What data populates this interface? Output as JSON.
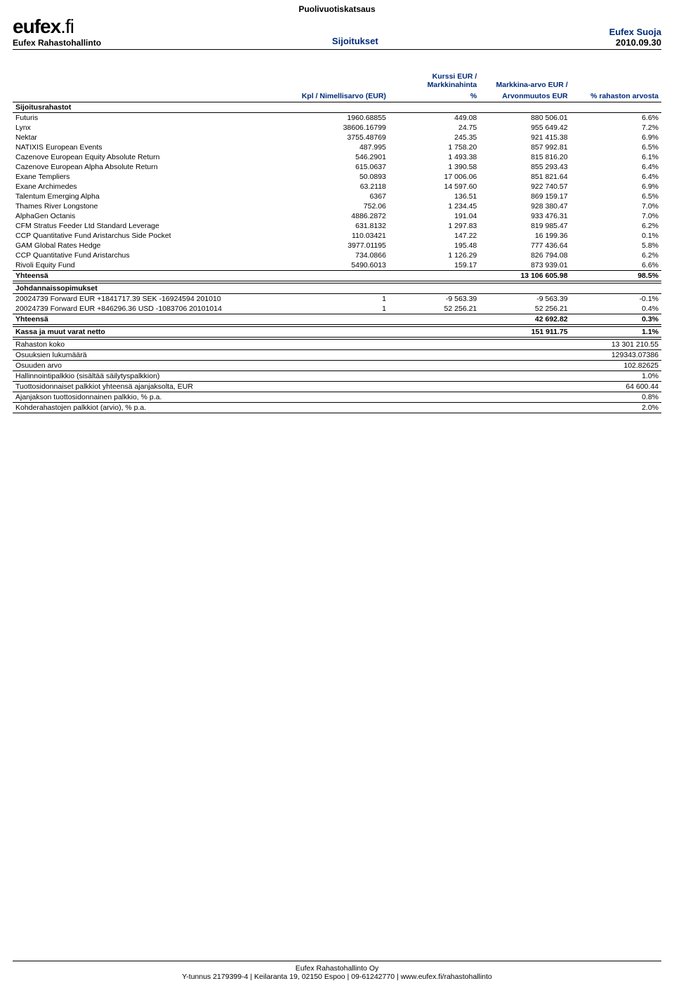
{
  "top_title": "Puolivuotiskatsaus",
  "logo": {
    "main": "eufex",
    "suffix": ".fi",
    "sub": "Eufex Rahastohallinto"
  },
  "header_center": "Sijoitukset",
  "header_right": {
    "name": "Eufex Suoja",
    "date": "2010.09.30"
  },
  "columns": {
    "name": "",
    "kpl1": "Kpl / Nimellisarvo (EUR)",
    "kurssi1": "Kurssi EUR / Markkinahinta",
    "kurssi2": "%",
    "mark1": "Markkina-arvo EUR /",
    "mark2": "Arvonmuutos EUR",
    "pct": "% rahaston arvosta"
  },
  "section1_title": "Sijoitusrahastot",
  "rows": [
    {
      "name": "Futuris",
      "kpl": "1960.68855",
      "kurssi": "449.08",
      "mark": "880 506.01",
      "pct": "6.6%"
    },
    {
      "name": "Lynx",
      "kpl": "38606.16799",
      "kurssi": "24.75",
      "mark": "955 649.42",
      "pct": "7.2%"
    },
    {
      "name": "Nektar",
      "kpl": "3755.48769",
      "kurssi": "245.35",
      "mark": "921 415.38",
      "pct": "6.9%"
    },
    {
      "name": "NATIXIS European Events",
      "kpl": "487.995",
      "kurssi": "1 758.20",
      "mark": "857 992.81",
      "pct": "6.5%"
    },
    {
      "name": "Cazenove European Equity Absolute Return",
      "kpl": "546.2901",
      "kurssi": "1 493.38",
      "mark": "815 816.20",
      "pct": "6.1%"
    },
    {
      "name": "Cazenove European Alpha Absolute Return",
      "kpl": "615.0637",
      "kurssi": "1 390.58",
      "mark": "855 293.43",
      "pct": "6.4%"
    },
    {
      "name": "Exane Templiers",
      "kpl": "50.0893",
      "kurssi": "17 006.06",
      "mark": "851 821.64",
      "pct": "6.4%"
    },
    {
      "name": "Exane Archimedes",
      "kpl": "63.2118",
      "kurssi": "14 597.60",
      "mark": "922 740.57",
      "pct": "6.9%"
    },
    {
      "name": "Talentum Emerging Alpha",
      "kpl": "6367",
      "kurssi": "136.51",
      "mark": "869 159.17",
      "pct": "6.5%"
    },
    {
      "name": "Thames River Longstone",
      "kpl": "752.06",
      "kurssi": "1 234.45",
      "mark": "928 380.47",
      "pct": "7.0%"
    },
    {
      "name": "AlphaGen Octanis",
      "kpl": "4886.2872",
      "kurssi": "191.04",
      "mark": "933 476.31",
      "pct": "7.0%"
    },
    {
      "name": "CFM Stratus Feeder Ltd Standard Leverage",
      "kpl": "631.8132",
      "kurssi": "1 297.83",
      "mark": "819 985.47",
      "pct": "6.2%"
    },
    {
      "name": "CCP Quantitative Fund Aristarchus Side Pocket",
      "kpl": "110.03421",
      "kurssi": "147.22",
      "mark": "16 199.36",
      "pct": "0.1%"
    },
    {
      "name": "GAM Global Rates Hedge",
      "kpl": "3977.01195",
      "kurssi": "195.48",
      "mark": "777 436.64",
      "pct": "5.8%"
    },
    {
      "name": "CCP Quantitative Fund Aristarchus",
      "kpl": "734.0866",
      "kurssi": "1 126.29",
      "mark": "826 794.08",
      "pct": "6.2%"
    },
    {
      "name": "Rivoli Equity Fund",
      "kpl": "5490.6013",
      "kurssi": "159.17",
      "mark": "873 939.01",
      "pct": "6.6%"
    }
  ],
  "total1": {
    "label": "Yhteensä",
    "mark": "13 106 605.98",
    "pct": "98.5%"
  },
  "section2_title": "Johdannaissopimukset",
  "rows2": [
    {
      "name": "20024739 Forward EUR +1841717.39 SEK -16924594 201010",
      "kpl": "1",
      "kurssi": "-9 563.39",
      "mark": "-9 563.39",
      "pct": "-0.1%"
    },
    {
      "name": "20024739 Forward EUR +846296.36 USD -1083706 20101014",
      "kpl": "1",
      "kurssi": "52 256.21",
      "mark": "52 256.21",
      "pct": "0.4%"
    }
  ],
  "total2": {
    "label": "Yhteensä",
    "mark": "42 692.82",
    "pct": "0.3%"
  },
  "kassa": {
    "label": "Kassa ja muut varat netto",
    "mark": "151 911.75",
    "pct": "1.1%"
  },
  "kvrows": [
    {
      "label": "Rahaston koko",
      "val": "13 301 210.55"
    },
    {
      "label": "Osuuksien lukumäärä",
      "val": "129343.07386"
    },
    {
      "label": "Osuuden arvo",
      "val": "102.82625"
    },
    {
      "label": "Hallinnointipalkkio (sisältää säilytyspalkkion)",
      "val": "1.0%"
    },
    {
      "label": "Tuottosidonnaiset palkkiot yhteensä ajanjaksolta, EUR",
      "val": "64 600.44"
    },
    {
      "label": "Ajanjakson tuottosidonnainen palkkio, % p.a.",
      "val": "0.8%"
    },
    {
      "label": "Kohderahastojen palkkiot (arvio), % p.a.",
      "val": "2.0%"
    }
  ],
  "footer": {
    "line1": "Eufex Rahastohallinto Oy",
    "line2": "Y-tunnus 2179399-4  |  Keilaranta 19, 02150 Espoo  |  09-61242770  |  www.eufex.fi/rahastohallinto"
  }
}
